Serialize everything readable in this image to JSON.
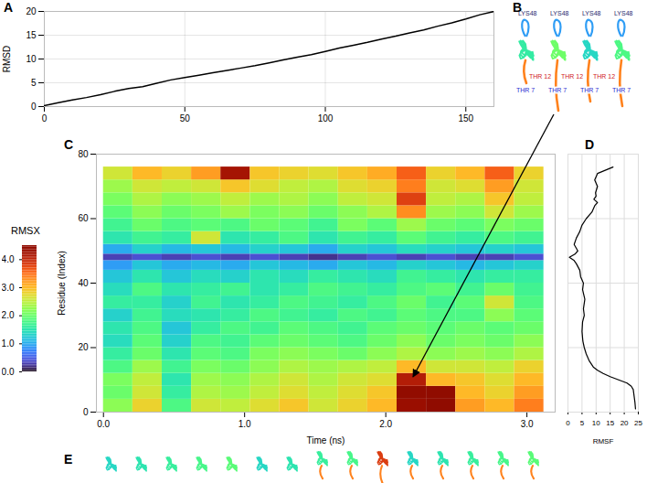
{
  "chart_data": [
    {
      "panel": "A",
      "type": "line",
      "ylabel": "RMSD",
      "color": "#000000",
      "grid": true,
      "x": [
        0,
        5,
        10,
        15,
        20,
        25,
        30,
        35,
        40,
        45,
        50,
        55,
        60,
        65,
        70,
        75,
        80,
        85,
        90,
        95,
        100,
        105,
        110,
        115,
        120,
        125,
        130,
        135,
        140,
        145,
        150,
        155,
        160
      ],
      "values": [
        0.2,
        0.8,
        1.4,
        1.9,
        2.5,
        3.2,
        3.8,
        4.2,
        4.9,
        5.6,
        6.1,
        6.6,
        7.1,
        7.6,
        8.1,
        8.6,
        9.2,
        9.8,
        10.4,
        10.9,
        11.6,
        12.3,
        12.9,
        13.5,
        14.2,
        14.8,
        15.5,
        16.1,
        16.9,
        17.6,
        18.4,
        19.3,
        20.0
      ],
      "xlim": [
        0,
        160
      ],
      "xticks": [
        0,
        50,
        100,
        150
      ],
      "ylim": [
        0,
        20
      ],
      "yticks": [
        0,
        5,
        10,
        15,
        20
      ]
    },
    {
      "panel": "B",
      "type": "structures",
      "structures": [
        {
          "labels": [
            {
              "text": "LYS48",
              "color": "#1f1f6b"
            },
            {
              "text": "THR 7",
              "color": "#2a2ad0"
            },
            {
              "text": "THR 12",
              "color": "#d02020"
            }
          ]
        },
        {
          "labels": [
            {
              "text": "LYS48",
              "color": "#1f1f6b"
            },
            {
              "text": "THR 7",
              "color": "#2a2ad0"
            },
            {
              "text": "THR 12",
              "color": "#d02020"
            }
          ]
        },
        {
          "labels": [
            {
              "text": "LYS48",
              "color": "#1f1f6b"
            },
            {
              "text": "THR 7",
              "color": "#2a2ad0"
            },
            {
              "text": "THR 12",
              "color": "#d02020"
            }
          ]
        },
        {
          "labels": [
            {
              "text": "LYS48",
              "color": "#1f1f6b"
            },
            {
              "text": "THR 7",
              "color": "#2a2ad0"
            }
          ]
        }
      ]
    },
    {
      "panel": "C",
      "type": "heatmap",
      "xlabel": "Time (ns)",
      "ylabel": "Residue (Index)",
      "x_bins": [
        0,
        0.208,
        0.416,
        0.624,
        0.832,
        1.04,
        1.248,
        1.456,
        1.664,
        1.872,
        2.08,
        2.288,
        2.496,
        2.704,
        2.912,
        3.12
      ],
      "y_bins": [
        0,
        4,
        8,
        12,
        16,
        20,
        24,
        28,
        32,
        36,
        40,
        44,
        47,
        49,
        52,
        56,
        60,
        64,
        68,
        72,
        76
      ],
      "values": [
        [
          2.2,
          2.8,
          1.8,
          2.6,
          2.5,
          2.7,
          2.9,
          2.6,
          2.8,
          3.0,
          4.3,
          4.6,
          3.2,
          3.0,
          3.4
        ],
        [
          2.0,
          2.6,
          1.6,
          2.4,
          2.3,
          2.5,
          2.7,
          2.5,
          2.7,
          2.9,
          4.4,
          4.5,
          3.0,
          2.8,
          3.2
        ],
        [
          2.1,
          2.5,
          1.5,
          2.3,
          2.2,
          2.4,
          2.6,
          2.4,
          2.6,
          2.7,
          4.1,
          3.0,
          2.9,
          2.7,
          3.0
        ],
        [
          1.8,
          2.3,
          1.7,
          2.1,
          2.0,
          2.2,
          2.4,
          2.3,
          2.4,
          2.5,
          3.0,
          2.6,
          2.6,
          2.5,
          2.8
        ],
        [
          1.6,
          2.0,
          1.5,
          1.9,
          1.8,
          2.1,
          2.2,
          2.1,
          2.0,
          2.2,
          2.4,
          2.2,
          2.3,
          2.2,
          2.4
        ],
        [
          1.4,
          1.9,
          1.3,
          1.8,
          1.7,
          1.9,
          2.0,
          1.9,
          1.8,
          2.0,
          2.2,
          2.0,
          2.1,
          2.0,
          2.2
        ],
        [
          1.5,
          1.8,
          1.2,
          1.6,
          1.8,
          1.7,
          1.9,
          1.8,
          1.7,
          1.9,
          2.0,
          1.9,
          2.0,
          1.9,
          2.0
        ],
        [
          1.3,
          1.7,
          1.4,
          1.5,
          1.6,
          1.8,
          1.7,
          1.6,
          1.8,
          1.7,
          1.9,
          1.8,
          1.8,
          2.2,
          1.9
        ],
        [
          1.6,
          1.6,
          1.3,
          1.7,
          1.5,
          1.6,
          1.8,
          1.7,
          1.6,
          1.8,
          2.0,
          1.7,
          1.9,
          2.6,
          1.8
        ],
        [
          1.4,
          1.8,
          1.5,
          1.6,
          1.7,
          1.5,
          1.6,
          1.8,
          1.7,
          1.6,
          1.8,
          1.9,
          1.7,
          2.0,
          1.7
        ],
        [
          1.2,
          1.5,
          1.2,
          1.4,
          1.3,
          1.5,
          1.4,
          1.6,
          1.5,
          1.4,
          1.7,
          1.6,
          1.5,
          1.6,
          1.6
        ],
        [
          0.9,
          1.2,
          1.0,
          1.1,
          1.0,
          1.2,
          1.1,
          1.0,
          1.2,
          1.1,
          1.3,
          1.2,
          1.1,
          1.2,
          1.3
        ],
        [
          0.3,
          0.4,
          0.3,
          0.4,
          0.3,
          0.4,
          0.3,
          0.2,
          0.3,
          0.4,
          0.3,
          0.4,
          0.3,
          0.3,
          0.4
        ],
        [
          1.0,
          1.3,
          1.1,
          1.2,
          1.1,
          1.3,
          1.2,
          1.0,
          1.3,
          1.2,
          1.4,
          1.3,
          1.2,
          1.3,
          1.2
        ],
        [
          1.5,
          1.7,
          1.6,
          2.6,
          1.5,
          1.6,
          1.8,
          1.5,
          1.7,
          1.6,
          1.9,
          1.7,
          1.6,
          1.8,
          1.7
        ],
        [
          1.7,
          2.0,
          1.8,
          1.9,
          1.8,
          2.0,
          1.9,
          1.7,
          2.1,
          1.9,
          2.3,
          2.0,
          1.9,
          2.1,
          2.0
        ],
        [
          1.9,
          2.2,
          2.0,
          2.1,
          2.3,
          2.1,
          2.2,
          2.0,
          2.2,
          2.4,
          3.3,
          2.3,
          2.2,
          2.6,
          2.3
        ],
        [
          2.1,
          2.4,
          2.2,
          2.3,
          2.5,
          2.3,
          2.4,
          2.2,
          2.5,
          2.6,
          3.8,
          2.5,
          2.4,
          2.9,
          2.5
        ],
        [
          2.3,
          2.6,
          2.5,
          2.6,
          2.9,
          2.7,
          2.5,
          2.4,
          2.7,
          2.8,
          3.4,
          2.6,
          2.7,
          3.2,
          2.6
        ],
        [
          2.6,
          3.0,
          2.8,
          3.2,
          4.2,
          2.9,
          2.8,
          2.7,
          2.9,
          3.1,
          3.6,
          2.8,
          3.0,
          3.6,
          2.8
        ]
      ],
      "xlim": [
        -0.05,
        3.2
      ],
      "xticks": [
        0,
        1,
        2,
        3
      ],
      "ylim": [
        0,
        80
      ],
      "yticks": [
        0,
        20,
        40,
        60,
        80
      ],
      "colorbar": {
        "title": "RMSX",
        "range": [
          0,
          4.5
        ],
        "ticks": [
          0,
          1,
          2,
          3,
          4
        ]
      }
    },
    {
      "panel": "D",
      "type": "line",
      "orientation": "horizontal",
      "xlabel": "RMSF",
      "color": "#000000",
      "grid": true,
      "tick_labels": "x",
      "y": [
        1,
        3,
        5,
        7,
        8,
        9,
        10,
        11,
        12,
        13,
        14,
        16,
        18,
        20,
        22,
        25,
        28,
        30,
        32,
        35,
        38,
        40,
        42,
        44,
        46,
        47,
        48,
        49,
        50,
        52,
        54,
        56,
        58,
        60,
        62,
        64,
        65,
        66,
        67,
        68,
        70,
        72,
        74,
        76
      ],
      "values": [
        24,
        23.8,
        23.5,
        23.2,
        22.5,
        21,
        18,
        15,
        12.5,
        10.5,
        9,
        7.5,
        6.5,
        5.8,
        5.3,
        5,
        5.2,
        5.8,
        5.5,
        6,
        5.2,
        5.5,
        4.5,
        4.2,
        3,
        2.2,
        0.5,
        2.5,
        3.5,
        2.2,
        3,
        4.2,
        5,
        6.5,
        8.5,
        9.5,
        10.5,
        9.2,
        10,
        9.8,
        10.5,
        9.5,
        10.5,
        16
      ],
      "xlim": [
        0,
        25
      ],
      "xticks": [
        0,
        5,
        10,
        15,
        20,
        25
      ],
      "ylim": [
        0,
        80
      ],
      "yticks": [
        0,
        20,
        40,
        60,
        80
      ]
    },
    {
      "panel": "E",
      "type": "structures"
    }
  ]
}
